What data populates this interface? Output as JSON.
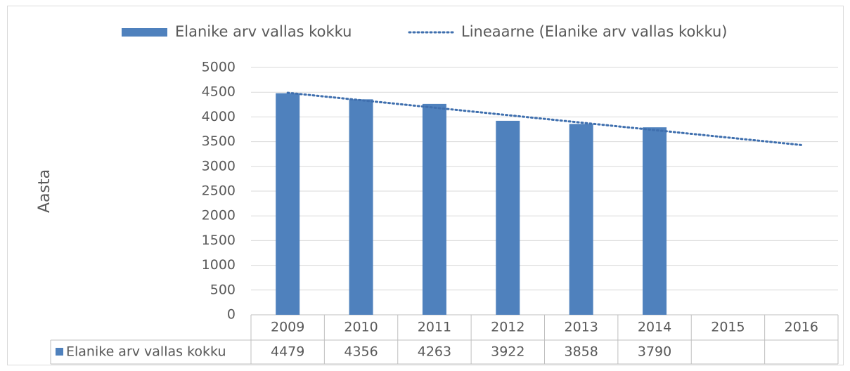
{
  "chart_data": {
    "type": "bar",
    "y_label": "Aasta",
    "categories": [
      "2009",
      "2010",
      "2011",
      "2012",
      "2013",
      "2014",
      "2015",
      "2016"
    ],
    "series": [
      {
        "name": "Elanike arv vallas kokku",
        "color": "#4f81bd",
        "values": [
          4479,
          4356,
          4263,
          3922,
          3858,
          3790,
          null,
          null
        ]
      },
      {
        "name": "Lineaarne (Elanike arv vallas kokku)",
        "type": "line",
        "color": "#3f6fae",
        "values": [
          4488,
          4338,
          4187,
          4036,
          3885,
          3734,
          3583,
          3432
        ]
      }
    ],
    "ylim": [
      0,
      5000
    ],
    "yticks": [
      0,
      500,
      1000,
      1500,
      2000,
      2500,
      3000,
      3500,
      4000,
      4500,
      5000
    ],
    "grid": true,
    "legend": "top"
  }
}
